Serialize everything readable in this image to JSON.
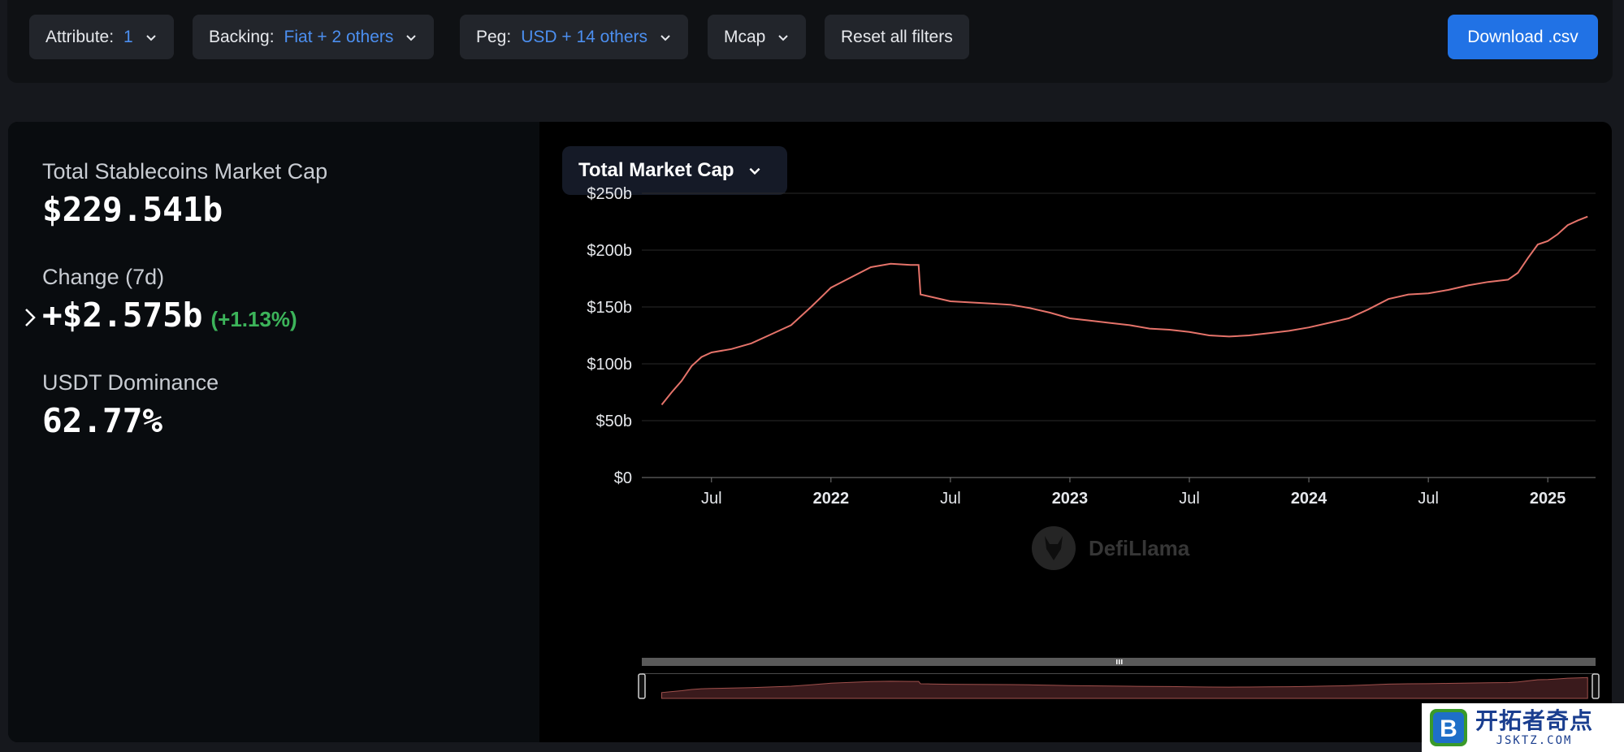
{
  "filters": [
    {
      "label": "Attribute:",
      "value": "1"
    },
    {
      "label": "Backing:",
      "value": "Fiat + 2 others"
    },
    {
      "label": "Peg:",
      "value": "USD + 14 others"
    },
    {
      "label": "Mcap",
      "value": ""
    }
  ],
  "reset_label": "Reset all filters",
  "download_label": "Download .csv",
  "stats": {
    "total_label": "Total Stablecoins Market Cap",
    "total_value": "$229.541b",
    "change_label": "Change (7d)",
    "change_value": "+$2.575b",
    "change_pct": "(+1.13%)",
    "dominance_label": "USDT Dominance",
    "dominance_value": "62.77%"
  },
  "chart_selector": "Total Market Cap",
  "watermark": "DefiLlama",
  "footer_badge": {
    "cn": "开拓者奇点",
    "en": "JSKTZ.COM",
    "letter": "B"
  },
  "colors": {
    "line": "#e5736a",
    "accent": "#2172e5",
    "positive": "#3cb45a"
  },
  "chart_data": {
    "type": "line",
    "title": "",
    "y_ticks": [
      "$250b",
      "$200b",
      "$150b",
      "$100b",
      "$50b",
      "$0"
    ],
    "x_ticks": [
      "Jul",
      "2022",
      "Jul",
      "2023",
      "Jul",
      "2024",
      "Jul",
      "2025"
    ],
    "ylim": [
      0,
      250
    ],
    "x_unit": "months since 2021-01",
    "x_tick_positions": [
      6,
      12,
      18,
      24,
      30,
      36,
      42,
      48
    ],
    "grid": true,
    "series": [
      {
        "name": "Total Market Cap",
        "points": [
          [
            3.5,
            64
          ],
          [
            4,
            75
          ],
          [
            4.5,
            85
          ],
          [
            5,
            98
          ],
          [
            5.5,
            106
          ],
          [
            6,
            110
          ],
          [
            7,
            113
          ],
          [
            8,
            118
          ],
          [
            9,
            126
          ],
          [
            10,
            134
          ],
          [
            11,
            150
          ],
          [
            12,
            167
          ],
          [
            13,
            176
          ],
          [
            14,
            185
          ],
          [
            15,
            188
          ],
          [
            16,
            187
          ],
          [
            16.4,
            187
          ],
          [
            16.5,
            161
          ],
          [
            17,
            159
          ],
          [
            18,
            155
          ],
          [
            19,
            154
          ],
          [
            20,
            153
          ],
          [
            21,
            152
          ],
          [
            22,
            149
          ],
          [
            23,
            145
          ],
          [
            24,
            140
          ],
          [
            25,
            138
          ],
          [
            26,
            136
          ],
          [
            27,
            134
          ],
          [
            28,
            131
          ],
          [
            29,
            130
          ],
          [
            30,
            128
          ],
          [
            31,
            125
          ],
          [
            32,
            124
          ],
          [
            33,
            125
          ],
          [
            34,
            127
          ],
          [
            35,
            129
          ],
          [
            36,
            132
          ],
          [
            37,
            136
          ],
          [
            38,
            140
          ],
          [
            39,
            148
          ],
          [
            40,
            157
          ],
          [
            41,
            161
          ],
          [
            42,
            162
          ],
          [
            43,
            165
          ],
          [
            44,
            169
          ],
          [
            45,
            172
          ],
          [
            46,
            174
          ],
          [
            46.5,
            180
          ],
          [
            47,
            193
          ],
          [
            47.5,
            205
          ],
          [
            48,
            208
          ],
          [
            48.5,
            214
          ],
          [
            49,
            222
          ],
          [
            49.5,
            226
          ],
          [
            50,
            229.5
          ]
        ]
      }
    ]
  }
}
